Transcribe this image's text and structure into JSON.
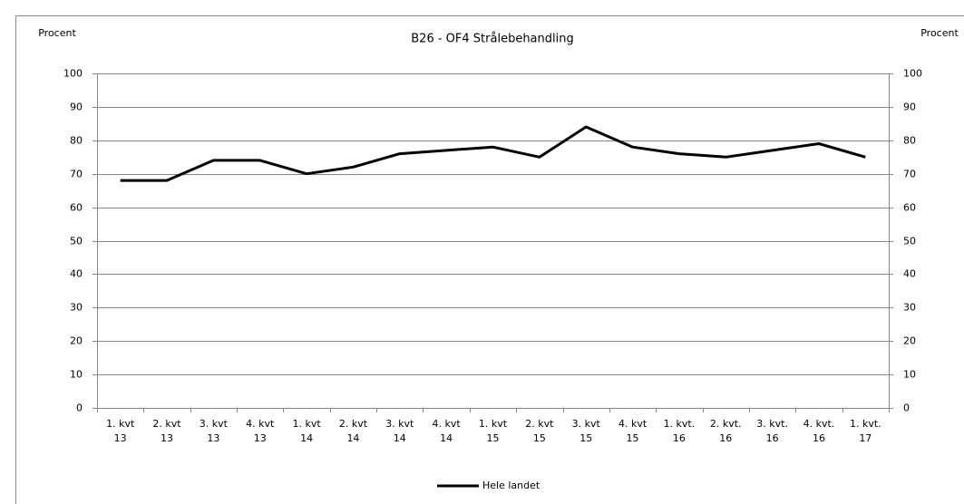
{
  "chart_data": {
    "type": "line",
    "title": "B26 - OF4 Strålebehandling",
    "y_label": "Procent",
    "y2_label": "Procent",
    "categories": [
      "1. kvt\n13",
      "2. kvt\n13",
      "3. kvt\n13",
      "4. kvt\n13",
      "1. kvt\n14",
      "2. kvt\n14",
      "3. kvt\n14",
      "4. kvt\n14",
      "1. kvt\n15",
      "2. kvt\n15",
      "3. kvt\n15",
      "4. kvt\n15",
      "1. kvt.\n16",
      "2. kvt.\n16",
      "3. kvt.\n16",
      "4. kvt.\n16",
      "1. kvt.\n17"
    ],
    "series": [
      {
        "name": "Hele landet",
        "color": "#000000",
        "values": [
          68,
          68,
          74,
          74,
          70,
          72,
          76,
          77,
          78,
          75,
          84,
          78,
          76,
          75,
          77,
          79,
          75
        ]
      }
    ],
    "ylim": [
      0,
      100
    ],
    "yticks": [
      0,
      10,
      20,
      30,
      40,
      50,
      60,
      70,
      80,
      90,
      100
    ],
    "y2lim": [
      0,
      100
    ],
    "y2ticks": [
      0,
      10,
      20,
      30,
      40,
      50,
      60,
      70,
      80,
      90,
      100
    ],
    "grid": true,
    "legend": "bottom"
  }
}
